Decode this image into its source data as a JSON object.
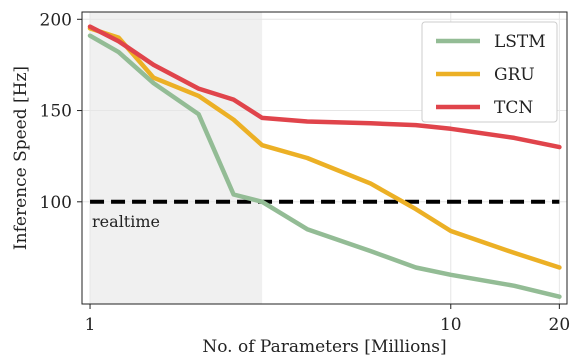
{
  "chart_data": {
    "type": "line",
    "xlabel": "No. of Parameters [Millions]",
    "ylabel": "Inference Speed [Hz]",
    "xscale": "log",
    "xlim": [
      0.95,
      21
    ],
    "ylim": [
      44,
      204
    ],
    "xticks": [
      1,
      10,
      20
    ],
    "yticks": [
      100,
      150,
      200
    ],
    "grid": true,
    "legend": "top-right",
    "shaded_region": {
      "x_from": 1,
      "x_to": 3,
      "color": "#f0f0f0"
    },
    "reference_line": {
      "y": 100,
      "label": "realtime",
      "style": "dashed",
      "color": "#000000"
    },
    "series": [
      {
        "name": "LSTM",
        "color": "#93bc95",
        "x": [
          1.0,
          1.2,
          1.5,
          2.0,
          2.5,
          3.0,
          4.0,
          6.0,
          8.0,
          10.0,
          15.0,
          20.0
        ],
        "y": [
          191,
          182,
          165,
          148,
          104,
          100,
          85,
          73,
          64,
          60,
          54,
          48
        ]
      },
      {
        "name": "GRU",
        "color": "#ecb025",
        "x": [
          1.0,
          1.2,
          1.5,
          2.0,
          2.5,
          3.0,
          4.0,
          6.0,
          8.0,
          10.0,
          15.0,
          20.0
        ],
        "y": [
          195,
          190,
          168,
          158,
          145,
          131,
          124,
          110,
          96,
          84,
          72,
          64
        ]
      },
      {
        "name": "TCN",
        "color": "#e0444b",
        "x": [
          1.0,
          1.2,
          1.5,
          2.0,
          2.5,
          3.0,
          4.0,
          6.0,
          8.0,
          10.0,
          15.0,
          20.0
        ],
        "y": [
          196,
          188,
          175,
          162,
          156,
          146,
          144,
          143,
          142,
          140,
          135,
          130
        ]
      }
    ]
  }
}
